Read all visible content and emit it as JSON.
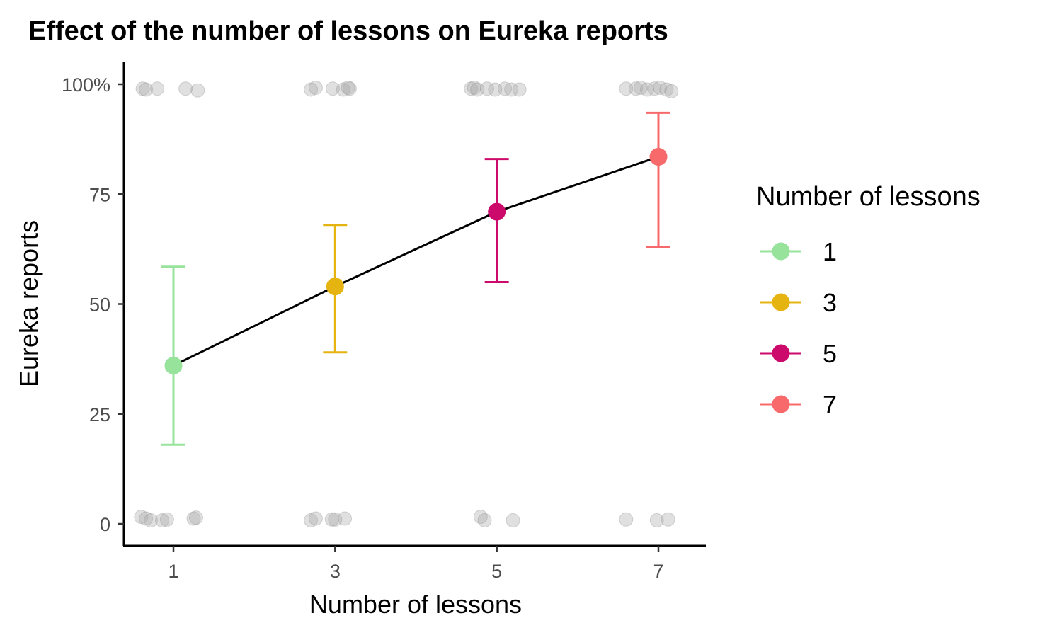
{
  "chart_data": {
    "type": "line",
    "title": "Effect of the number of lessons on Eureka reports",
    "xlabel": "Number of lessons",
    "ylabel": "Eureka reports",
    "x_ticks": [
      1,
      3,
      5,
      7
    ],
    "y_ticks": [
      {
        "value": 0,
        "label": "0"
      },
      {
        "value": 25,
        "label": "25"
      },
      {
        "value": 50,
        "label": "50"
      },
      {
        "value": 75,
        "label": "75"
      },
      {
        "value": 100,
        "label": "100%"
      }
    ],
    "xlim": [
      0.4,
      7.6
    ],
    "ylim": [
      -5,
      105
    ],
    "grid": false,
    "legend": {
      "title": "Number of lessons",
      "placement": "right",
      "entries": [
        {
          "label": "1",
          "color": "#98e39c"
        },
        {
          "label": "3",
          "color": "#e6b410"
        },
        {
          "label": "5",
          "color": "#cc0a6b"
        },
        {
          "label": "7",
          "color": "#f8696b"
        }
      ]
    },
    "means": [
      {
        "x": 1,
        "y": 36,
        "ci_low": 18,
        "ci_high": 58.5,
        "color": "#98e39c"
      },
      {
        "x": 3,
        "y": 54,
        "ci_low": 39,
        "ci_high": 68,
        "color": "#e6b410"
      },
      {
        "x": 5,
        "y": 71,
        "ci_low": 55,
        "ci_high": 83,
        "color": "#cc0a6b"
      },
      {
        "x": 7,
        "y": 83.5,
        "ci_low": 63,
        "ci_high": 93.5,
        "color": "#f8696b"
      }
    ],
    "raw_points": [
      {
        "x": 0.62,
        "y": 99
      },
      {
        "x": 0.66,
        "y": 98.8
      },
      {
        "x": 0.8,
        "y": 99
      },
      {
        "x": 1.15,
        "y": 99
      },
      {
        "x": 1.3,
        "y": 98.6
      },
      {
        "x": 0.6,
        "y": 1.6
      },
      {
        "x": 0.66,
        "y": 1.2
      },
      {
        "x": 0.72,
        "y": 0.8
      },
      {
        "x": 0.86,
        "y": 0.8
      },
      {
        "x": 0.92,
        "y": 1.0
      },
      {
        "x": 1.25,
        "y": 1.2
      },
      {
        "x": 1.28,
        "y": 1.4
      },
      {
        "x": 2.7,
        "y": 98.8
      },
      {
        "x": 2.76,
        "y": 99.2
      },
      {
        "x": 2.97,
        "y": 99
      },
      {
        "x": 3.1,
        "y": 98.8
      },
      {
        "x": 3.16,
        "y": 99.2
      },
      {
        "x": 3.18,
        "y": 99
      },
      {
        "x": 2.7,
        "y": 0.8
      },
      {
        "x": 2.76,
        "y": 1.2
      },
      {
        "x": 2.96,
        "y": 1.0
      },
      {
        "x": 3.0,
        "y": 1.0
      },
      {
        "x": 3.12,
        "y": 1.2
      },
      {
        "x": 4.68,
        "y": 99
      },
      {
        "x": 4.72,
        "y": 99.2
      },
      {
        "x": 4.76,
        "y": 98.8
      },
      {
        "x": 4.88,
        "y": 99
      },
      {
        "x": 4.98,
        "y": 98.8
      },
      {
        "x": 5.1,
        "y": 99
      },
      {
        "x": 5.18,
        "y": 98.8
      },
      {
        "x": 5.28,
        "y": 98.8
      },
      {
        "x": 4.8,
        "y": 1.6
      },
      {
        "x": 4.85,
        "y": 0.8
      },
      {
        "x": 5.2,
        "y": 0.8
      },
      {
        "x": 6.6,
        "y": 99
      },
      {
        "x": 6.72,
        "y": 99
      },
      {
        "x": 6.78,
        "y": 99.2
      },
      {
        "x": 6.86,
        "y": 98.8
      },
      {
        "x": 6.95,
        "y": 99
      },
      {
        "x": 7.02,
        "y": 99.2
      },
      {
        "x": 7.1,
        "y": 98.8
      },
      {
        "x": 7.16,
        "y": 98.4
      },
      {
        "x": 6.6,
        "y": 1.0
      },
      {
        "x": 6.98,
        "y": 0.8
      },
      {
        "x": 7.12,
        "y": 1.0
      }
    ]
  }
}
